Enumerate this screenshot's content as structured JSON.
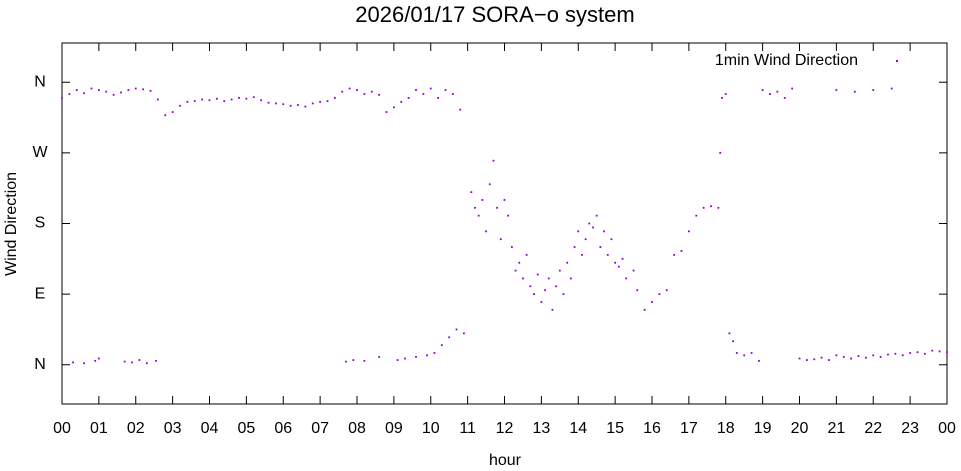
{
  "chart_data": {
    "type": "scatter",
    "title": "2026/01/17 SORA−o system",
    "x_label": "hour",
    "y_label": "Wind Direction",
    "xlim": [
      0,
      24
    ],
    "ylim": [
      -50,
      410
    ],
    "xticks": [
      {
        "value": 0,
        "label": "00"
      },
      {
        "value": 1,
        "label": "01"
      },
      {
        "value": 2,
        "label": "02"
      },
      {
        "value": 3,
        "label": "03"
      },
      {
        "value": 4,
        "label": "04"
      },
      {
        "value": 5,
        "label": "05"
      },
      {
        "value": 6,
        "label": "06"
      },
      {
        "value": 7,
        "label": "07"
      },
      {
        "value": 8,
        "label": "08"
      },
      {
        "value": 9,
        "label": "09"
      },
      {
        "value": 10,
        "label": "10"
      },
      {
        "value": 11,
        "label": "11"
      },
      {
        "value": 12,
        "label": "12"
      },
      {
        "value": 13,
        "label": "13"
      },
      {
        "value": 14,
        "label": "14"
      },
      {
        "value": 15,
        "label": "15"
      },
      {
        "value": 16,
        "label": "16"
      },
      {
        "value": 17,
        "label": "17"
      },
      {
        "value": 18,
        "label": "18"
      },
      {
        "value": 19,
        "label": "19"
      },
      {
        "value": 20,
        "label": "20"
      },
      {
        "value": 21,
        "label": "21"
      },
      {
        "value": 22,
        "label": "22"
      },
      {
        "value": 23,
        "label": "23"
      },
      {
        "value": 24,
        "label": "00"
      }
    ],
    "yticks": [
      {
        "value": 0,
        "label": "N"
      },
      {
        "value": 90,
        "label": "E"
      },
      {
        "value": 180,
        "label": "S"
      },
      {
        "value": 270,
        "label": "W"
      },
      {
        "value": 360,
        "label": "N"
      }
    ],
    "legend": "upper right",
    "series": [
      {
        "name": "1min Wind Direction",
        "color": "#9400d3",
        "x": [
          0.0,
          0.2,
          0.4,
          0.6,
          0.8,
          1.0,
          1.2,
          1.4,
          1.6,
          1.8,
          2.0,
          2.2,
          2.4,
          2.6,
          2.8,
          3.0,
          3.2,
          3.4,
          3.6,
          3.8,
          4.0,
          4.2,
          4.4,
          4.6,
          4.8,
          5.0,
          5.2,
          5.4,
          5.6,
          5.8,
          6.0,
          6.2,
          6.4,
          6.6,
          6.8,
          7.0,
          7.2,
          7.4,
          7.6,
          7.8,
          8.0,
          8.2,
          8.4,
          8.6,
          8.8,
          9.0,
          9.2,
          9.4,
          9.6,
          9.8,
          10.0,
          10.2,
          10.4,
          10.6,
          10.8,
          0.3,
          0.6,
          0.9,
          1.0,
          1.7,
          1.9,
          2.1,
          2.3,
          2.55,
          7.7,
          7.9,
          8.2,
          8.6,
          9.1,
          9.3,
          9.6,
          9.9,
          10.1,
          10.3,
          10.5,
          10.7,
          10.9,
          11.1,
          11.2,
          11.3,
          11.4,
          11.5,
          11.6,
          11.7,
          11.8,
          11.9,
          12.0,
          12.1,
          12.2,
          12.3,
          12.4,
          12.5,
          12.6,
          12.7,
          12.8,
          12.9,
          13.0,
          13.1,
          13.2,
          13.3,
          13.4,
          13.5,
          13.6,
          13.7,
          13.8,
          13.9,
          14.0,
          14.1,
          14.2,
          14.3,
          14.4,
          14.5,
          14.6,
          14.7,
          14.8,
          14.9,
          15.0,
          15.1,
          15.2,
          15.3,
          15.5,
          15.6,
          15.8,
          16.0,
          16.2,
          16.4,
          16.6,
          16.8,
          17.0,
          17.2,
          17.4,
          17.6,
          17.8,
          17.85,
          17.9,
          18.0,
          18.1,
          18.2,
          18.3,
          18.5,
          18.7,
          18.9,
          19.0,
          19.2,
          19.4,
          19.6,
          19.8,
          20.0,
          20.2,
          20.4,
          20.6,
          20.8,
          21.0,
          21.2,
          21.4,
          21.6,
          21.8,
          22.0,
          22.2,
          22.4,
          22.6,
          22.8,
          23.0,
          23.2,
          23.4,
          23.6,
          23.8,
          24.0,
          21.0,
          21.5,
          22.0,
          22.5
        ],
        "values": [
          340,
          345,
          350,
          346,
          352,
          350,
          348,
          344,
          347,
          350,
          352,
          351,
          349,
          338,
          318,
          322,
          330,
          335,
          336,
          338,
          337,
          339,
          336,
          338,
          340,
          339,
          341,
          337,
          334,
          333,
          332,
          330,
          331,
          329,
          333,
          335,
          336,
          340,
          348,
          352,
          350,
          345,
          348,
          344,
          322,
          328,
          335,
          340,
          350,
          345,
          352,
          340,
          350,
          345,
          325,
          3,
          2,
          5,
          8,
          4,
          3,
          6,
          2,
          5,
          4,
          6,
          5,
          10,
          6,
          8,
          10,
          12,
          15,
          25,
          35,
          45,
          40,
          220,
          200,
          190,
          210,
          170,
          230,
          260,
          200,
          160,
          210,
          190,
          150,
          120,
          130,
          110,
          140,
          100,
          90,
          115,
          80,
          95,
          110,
          70,
          100,
          120,
          90,
          130,
          110,
          150,
          170,
          140,
          160,
          180,
          175,
          190,
          150,
          170,
          140,
          160,
          130,
          125,
          135,
          110,
          120,
          95,
          70,
          80,
          90,
          95,
          140,
          145,
          170,
          190,
          200,
          202,
          200,
          270,
          340,
          345,
          40,
          30,
          15,
          12,
          15,
          5,
          350,
          345,
          348,
          340,
          352,
          8,
          6,
          7,
          9,
          6,
          12,
          10,
          8,
          11,
          9,
          12,
          10,
          13,
          14,
          12,
          15,
          16,
          14,
          18,
          17,
          16,
          350,
          348,
          350,
          352
        ]
      }
    ]
  }
}
